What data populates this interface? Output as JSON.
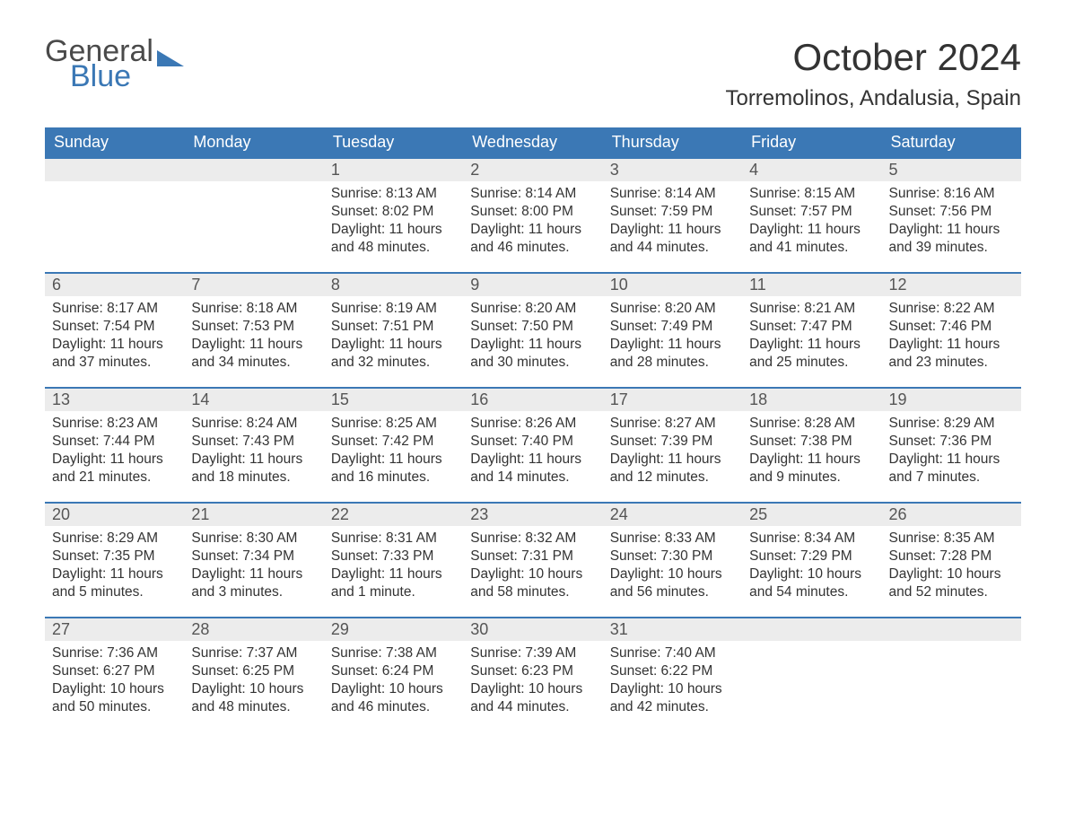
{
  "brand": {
    "part1": "General",
    "part2": "Blue",
    "color_main": "#4a4a4a",
    "color_blue": "#3b78b5"
  },
  "title": "October 2024",
  "location": "Torremolinos, Andalusia, Spain",
  "colors": {
    "header_bg": "#3b78b5",
    "header_text": "#ffffff",
    "daybar_bg": "#ececec",
    "daybar_border": "#3b78b5",
    "body_text": "#333333",
    "page_bg": "#ffffff"
  },
  "weekdays": [
    "Sunday",
    "Monday",
    "Tuesday",
    "Wednesday",
    "Thursday",
    "Friday",
    "Saturday"
  ],
  "weeks": [
    [
      {
        "day": "",
        "sunrise": "",
        "sunset": "",
        "daylight": ""
      },
      {
        "day": "",
        "sunrise": "",
        "sunset": "",
        "daylight": ""
      },
      {
        "day": "1",
        "sunrise": "Sunrise: 8:13 AM",
        "sunset": "Sunset: 8:02 PM",
        "daylight": "Daylight: 11 hours and 48 minutes."
      },
      {
        "day": "2",
        "sunrise": "Sunrise: 8:14 AM",
        "sunset": "Sunset: 8:00 PM",
        "daylight": "Daylight: 11 hours and 46 minutes."
      },
      {
        "day": "3",
        "sunrise": "Sunrise: 8:14 AM",
        "sunset": "Sunset: 7:59 PM",
        "daylight": "Daylight: 11 hours and 44 minutes."
      },
      {
        "day": "4",
        "sunrise": "Sunrise: 8:15 AM",
        "sunset": "Sunset: 7:57 PM",
        "daylight": "Daylight: 11 hours and 41 minutes."
      },
      {
        "day": "5",
        "sunrise": "Sunrise: 8:16 AM",
        "sunset": "Sunset: 7:56 PM",
        "daylight": "Daylight: 11 hours and 39 minutes."
      }
    ],
    [
      {
        "day": "6",
        "sunrise": "Sunrise: 8:17 AM",
        "sunset": "Sunset: 7:54 PM",
        "daylight": "Daylight: 11 hours and 37 minutes."
      },
      {
        "day": "7",
        "sunrise": "Sunrise: 8:18 AM",
        "sunset": "Sunset: 7:53 PM",
        "daylight": "Daylight: 11 hours and 34 minutes."
      },
      {
        "day": "8",
        "sunrise": "Sunrise: 8:19 AM",
        "sunset": "Sunset: 7:51 PM",
        "daylight": "Daylight: 11 hours and 32 minutes."
      },
      {
        "day": "9",
        "sunrise": "Sunrise: 8:20 AM",
        "sunset": "Sunset: 7:50 PM",
        "daylight": "Daylight: 11 hours and 30 minutes."
      },
      {
        "day": "10",
        "sunrise": "Sunrise: 8:20 AM",
        "sunset": "Sunset: 7:49 PM",
        "daylight": "Daylight: 11 hours and 28 minutes."
      },
      {
        "day": "11",
        "sunrise": "Sunrise: 8:21 AM",
        "sunset": "Sunset: 7:47 PM",
        "daylight": "Daylight: 11 hours and 25 minutes."
      },
      {
        "day": "12",
        "sunrise": "Sunrise: 8:22 AM",
        "sunset": "Sunset: 7:46 PM",
        "daylight": "Daylight: 11 hours and 23 minutes."
      }
    ],
    [
      {
        "day": "13",
        "sunrise": "Sunrise: 8:23 AM",
        "sunset": "Sunset: 7:44 PM",
        "daylight": "Daylight: 11 hours and 21 minutes."
      },
      {
        "day": "14",
        "sunrise": "Sunrise: 8:24 AM",
        "sunset": "Sunset: 7:43 PM",
        "daylight": "Daylight: 11 hours and 18 minutes."
      },
      {
        "day": "15",
        "sunrise": "Sunrise: 8:25 AM",
        "sunset": "Sunset: 7:42 PM",
        "daylight": "Daylight: 11 hours and 16 minutes."
      },
      {
        "day": "16",
        "sunrise": "Sunrise: 8:26 AM",
        "sunset": "Sunset: 7:40 PM",
        "daylight": "Daylight: 11 hours and 14 minutes."
      },
      {
        "day": "17",
        "sunrise": "Sunrise: 8:27 AM",
        "sunset": "Sunset: 7:39 PM",
        "daylight": "Daylight: 11 hours and 12 minutes."
      },
      {
        "day": "18",
        "sunrise": "Sunrise: 8:28 AM",
        "sunset": "Sunset: 7:38 PM",
        "daylight": "Daylight: 11 hours and 9 minutes."
      },
      {
        "day": "19",
        "sunrise": "Sunrise: 8:29 AM",
        "sunset": "Sunset: 7:36 PM",
        "daylight": "Daylight: 11 hours and 7 minutes."
      }
    ],
    [
      {
        "day": "20",
        "sunrise": "Sunrise: 8:29 AM",
        "sunset": "Sunset: 7:35 PM",
        "daylight": "Daylight: 11 hours and 5 minutes."
      },
      {
        "day": "21",
        "sunrise": "Sunrise: 8:30 AM",
        "sunset": "Sunset: 7:34 PM",
        "daylight": "Daylight: 11 hours and 3 minutes."
      },
      {
        "day": "22",
        "sunrise": "Sunrise: 8:31 AM",
        "sunset": "Sunset: 7:33 PM",
        "daylight": "Daylight: 11 hours and 1 minute."
      },
      {
        "day": "23",
        "sunrise": "Sunrise: 8:32 AM",
        "sunset": "Sunset: 7:31 PM",
        "daylight": "Daylight: 10 hours and 58 minutes."
      },
      {
        "day": "24",
        "sunrise": "Sunrise: 8:33 AM",
        "sunset": "Sunset: 7:30 PM",
        "daylight": "Daylight: 10 hours and 56 minutes."
      },
      {
        "day": "25",
        "sunrise": "Sunrise: 8:34 AM",
        "sunset": "Sunset: 7:29 PM",
        "daylight": "Daylight: 10 hours and 54 minutes."
      },
      {
        "day": "26",
        "sunrise": "Sunrise: 8:35 AM",
        "sunset": "Sunset: 7:28 PM",
        "daylight": "Daylight: 10 hours and 52 minutes."
      }
    ],
    [
      {
        "day": "27",
        "sunrise": "Sunrise: 7:36 AM",
        "sunset": "Sunset: 6:27 PM",
        "daylight": "Daylight: 10 hours and 50 minutes."
      },
      {
        "day": "28",
        "sunrise": "Sunrise: 7:37 AM",
        "sunset": "Sunset: 6:25 PM",
        "daylight": "Daylight: 10 hours and 48 minutes."
      },
      {
        "day": "29",
        "sunrise": "Sunrise: 7:38 AM",
        "sunset": "Sunset: 6:24 PM",
        "daylight": "Daylight: 10 hours and 46 minutes."
      },
      {
        "day": "30",
        "sunrise": "Sunrise: 7:39 AM",
        "sunset": "Sunset: 6:23 PM",
        "daylight": "Daylight: 10 hours and 44 minutes."
      },
      {
        "day": "31",
        "sunrise": "Sunrise: 7:40 AM",
        "sunset": "Sunset: 6:22 PM",
        "daylight": "Daylight: 10 hours and 42 minutes."
      },
      {
        "day": "",
        "sunrise": "",
        "sunset": "",
        "daylight": ""
      },
      {
        "day": "",
        "sunrise": "",
        "sunset": "",
        "daylight": ""
      }
    ]
  ]
}
